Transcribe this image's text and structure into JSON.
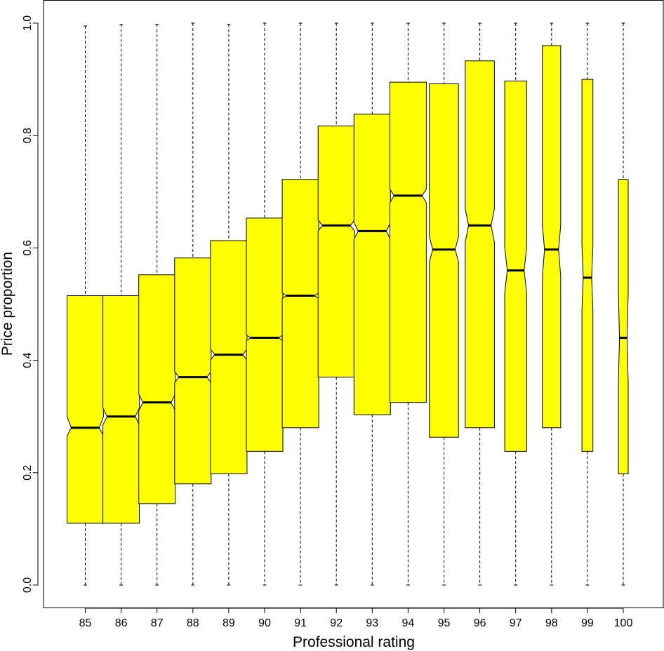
{
  "chart_data": {
    "type": "boxplot",
    "notched": true,
    "xlabel": "Professional rating",
    "ylabel": "Price proportion",
    "ylim": [
      0.0,
      1.0
    ],
    "y_ticks": [
      0.0,
      0.2,
      0.4,
      0.6,
      0.8,
      1.0
    ],
    "y_tick_labels": [
      "0.0",
      "0.2",
      "0.4",
      "0.6",
      "0.8",
      "1.0"
    ],
    "box_fill": "#ffff00",
    "whisker_style": "dashed",
    "categories": [
      "85",
      "86",
      "87",
      "88",
      "89",
      "90",
      "91",
      "92",
      "93",
      "94",
      "95",
      "96",
      "97",
      "98",
      "99",
      "100"
    ],
    "boxes": [
      {
        "min": 0.0,
        "q1": 0.11,
        "median": 0.28,
        "q3": 0.515,
        "max": 0.995,
        "notch_lo": 0.265,
        "notch_hi": 0.3,
        "rel_width": 1.0
      },
      {
        "min": 0.0,
        "q1": 0.11,
        "median": 0.3,
        "q3": 0.515,
        "max": 0.998,
        "notch_lo": 0.285,
        "notch_hi": 0.315,
        "rel_width": 1.0
      },
      {
        "min": 0.0,
        "q1": 0.145,
        "median": 0.325,
        "q3": 0.552,
        "max": 0.998,
        "notch_lo": 0.31,
        "notch_hi": 0.34,
        "rel_width": 1.0
      },
      {
        "min": 0.0,
        "q1": 0.18,
        "median": 0.37,
        "q3": 0.582,
        "max": 1.0,
        "notch_lo": 0.36,
        "notch_hi": 0.38,
        "rel_width": 1.0
      },
      {
        "min": 0.0,
        "q1": 0.198,
        "median": 0.41,
        "q3": 0.613,
        "max": 0.998,
        "notch_lo": 0.4,
        "notch_hi": 0.42,
        "rel_width": 1.0
      },
      {
        "min": 0.0,
        "q1": 0.238,
        "median": 0.44,
        "q3": 0.653,
        "max": 1.0,
        "notch_lo": 0.435,
        "notch_hi": 0.445,
        "rel_width": 1.0
      },
      {
        "min": 0.0,
        "q1": 0.28,
        "median": 0.515,
        "q3": 0.722,
        "max": 1.0,
        "notch_lo": 0.51,
        "notch_hi": 0.52,
        "rel_width": 1.0
      },
      {
        "min": 0.0,
        "q1": 0.37,
        "median": 0.64,
        "q3": 0.817,
        "max": 1.0,
        "notch_lo": 0.63,
        "notch_hi": 0.65,
        "rel_width": 1.0
      },
      {
        "min": 0.0,
        "q1": 0.303,
        "median": 0.63,
        "q3": 0.838,
        "max": 1.0,
        "notch_lo": 0.615,
        "notch_hi": 0.645,
        "rel_width": 1.0
      },
      {
        "min": 0.0,
        "q1": 0.325,
        "median": 0.693,
        "q3": 0.895,
        "max": 1.0,
        "notch_lo": 0.68,
        "notch_hi": 0.705,
        "rel_width": 1.0
      },
      {
        "min": 0.0,
        "q1": 0.263,
        "median": 0.597,
        "q3": 0.892,
        "max": 1.0,
        "notch_lo": 0.575,
        "notch_hi": 0.62,
        "rel_width": 0.8
      },
      {
        "min": 0.0,
        "q1": 0.28,
        "median": 0.64,
        "q3": 0.933,
        "max": 1.0,
        "notch_lo": 0.61,
        "notch_hi": 0.67,
        "rel_width": 0.8
      },
      {
        "min": 0.0,
        "q1": 0.238,
        "median": 0.56,
        "q3": 0.897,
        "max": 1.0,
        "notch_lo": 0.52,
        "notch_hi": 0.6,
        "rel_width": 0.6
      },
      {
        "min": 0.0,
        "q1": 0.28,
        "median": 0.597,
        "q3": 0.96,
        "max": 1.0,
        "notch_lo": 0.55,
        "notch_hi": 0.64,
        "rel_width": 0.5
      },
      {
        "min": 0.0,
        "q1": 0.238,
        "median": 0.547,
        "q3": 0.9,
        "max": 1.0,
        "notch_lo": 0.49,
        "notch_hi": 0.605,
        "rel_width": 0.3
      },
      {
        "min": 0.0,
        "q1": 0.198,
        "median": 0.44,
        "q3": 0.722,
        "max": 1.0,
        "notch_lo": 0.36,
        "notch_hi": 0.52,
        "rel_width": 0.27
      }
    ]
  }
}
